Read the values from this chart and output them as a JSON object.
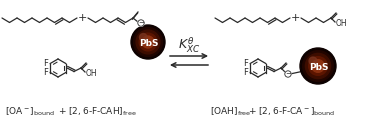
{
  "bg_color": "#ffffff",
  "line_color": "#2a2a2a",
  "pbs_dark": "#0d0100",
  "pbs_mid": "#5c1500",
  "pbs_light": "#8b3010",
  "pbs_highlight": "#7a3520",
  "fig_width": 3.78,
  "fig_height": 1.23,
  "dpi": 100,
  "left_label1": "[OA$^-$]$_{\\mathrm{bound}}$",
  "left_label2": " + [2,6-F-CAH]$_{\\mathrm{free}}$",
  "right_label1": "[OAH]$_{\\mathrm{free}}$",
  "right_label2": " + [2,6-F-CA$^-$]$_{\\mathrm{bound}}$"
}
